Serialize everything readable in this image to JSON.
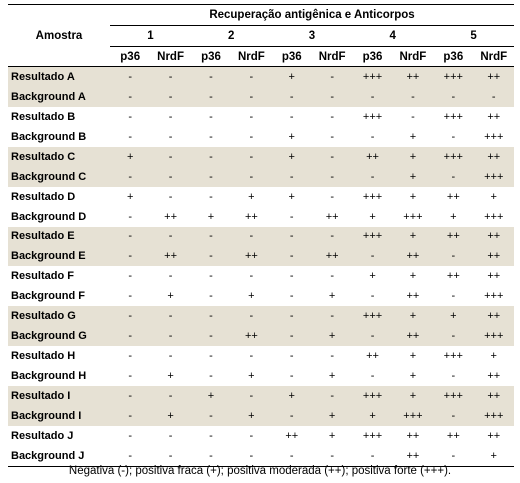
{
  "table": {
    "header_main": "Recuperação antigênica e Anticorpos",
    "header_sample": "Amostra",
    "groups": [
      "1",
      "2",
      "3",
      "4",
      "5"
    ],
    "subheaders": [
      "p36",
      "NrdF",
      "p36",
      "NrdF",
      "p36",
      "NrdF",
      "p36",
      "NrdF",
      "p36",
      "NrdF"
    ],
    "rows": [
      {
        "label": "Resultado A",
        "shaded": true,
        "values": [
          "-",
          "-",
          "-",
          "-",
          "+",
          "-",
          "+++",
          "++",
          "+++",
          "++"
        ]
      },
      {
        "label": "Background A",
        "shaded": true,
        "values": [
          "-",
          "-",
          "-",
          "-",
          "-",
          "-",
          "-",
          "-",
          "-",
          "-"
        ]
      },
      {
        "label": "Resultado B",
        "shaded": false,
        "values": [
          "-",
          "-",
          "-",
          "-",
          "-",
          "-",
          "+++",
          "-",
          "+++",
          "++"
        ]
      },
      {
        "label": "Background B",
        "shaded": false,
        "values": [
          "-",
          "-",
          "-",
          "-",
          "+",
          "-",
          "-",
          "+",
          "-",
          "+++"
        ]
      },
      {
        "label": "Resultado C",
        "shaded": true,
        "values": [
          "+",
          "-",
          "-",
          "-",
          "+",
          "-",
          "++",
          "+",
          "+++",
          "++"
        ]
      },
      {
        "label": "Background C",
        "shaded": true,
        "values": [
          "-",
          "-",
          "-",
          "-",
          "-",
          "-",
          "-",
          "+",
          "-",
          "+++"
        ]
      },
      {
        "label": "Resultado D",
        "shaded": false,
        "values": [
          "+",
          "-",
          "-",
          "+",
          "+",
          "-",
          "+++",
          "+",
          "++",
          "+"
        ]
      },
      {
        "label": "Background D",
        "shaded": false,
        "values": [
          "-",
          "++",
          "+",
          "++",
          "-",
          "++",
          "+",
          "+++",
          "+",
          "+++"
        ]
      },
      {
        "label": "Resultado E",
        "shaded": true,
        "values": [
          "-",
          "-",
          "-",
          "-",
          "-",
          "-",
          "+++",
          "+",
          "++",
          "++"
        ]
      },
      {
        "label": "Background E",
        "shaded": true,
        "values": [
          "-",
          "++",
          "-",
          "++",
          "-",
          "++",
          "-",
          "++",
          "-",
          "++"
        ]
      },
      {
        "label": "Resultado F",
        "shaded": false,
        "values": [
          "-",
          "-",
          "-",
          "-",
          "-",
          "-",
          "+",
          "+",
          "++",
          "++"
        ]
      },
      {
        "label": "Background F",
        "shaded": false,
        "values": [
          "-",
          "+",
          "-",
          "+",
          "-",
          "+",
          "-",
          "++",
          "-",
          "+++"
        ]
      },
      {
        "label": "Resultado G",
        "shaded": true,
        "values": [
          "-",
          "-",
          "-",
          "-",
          "-",
          "-",
          "+++",
          "+",
          "+",
          "++"
        ]
      },
      {
        "label": "Background G",
        "shaded": true,
        "values": [
          "-",
          "-",
          "-",
          "++",
          "-",
          "+",
          "-",
          "++",
          "-",
          "+++"
        ]
      },
      {
        "label": "Resultado H",
        "shaded": false,
        "values": [
          "-",
          "-",
          "-",
          "-",
          "-",
          "-",
          "++",
          "+",
          "+++",
          "+"
        ]
      },
      {
        "label": "Background H",
        "shaded": false,
        "values": [
          "-",
          "+",
          "-",
          "+",
          "-",
          "+",
          "-",
          "+",
          "-",
          "++"
        ]
      },
      {
        "label": "Resultado I",
        "shaded": true,
        "values": [
          "-",
          "-",
          "+",
          "-",
          "+",
          "-",
          "+++",
          "+",
          "+++",
          "++"
        ]
      },
      {
        "label": "Background I",
        "shaded": true,
        "values": [
          "-",
          "+",
          "-",
          "+",
          "-",
          "+",
          "+",
          "+++",
          "-",
          "+++"
        ]
      },
      {
        "label": "Resultado J",
        "shaded": false,
        "values": [
          "-",
          "-",
          "-",
          "-",
          "++",
          "+",
          "+++",
          "++",
          "++",
          "++"
        ]
      },
      {
        "label": "Background J",
        "shaded": false,
        "values": [
          "-",
          "-",
          "-",
          "-",
          "-",
          "-",
          "-",
          "++",
          "-",
          "+"
        ]
      }
    ],
    "shade_color": "#e6e1d4"
  },
  "legend": "Negativa (-); positiva fraca (+); positiva moderada (++); positiva forte (+++)."
}
